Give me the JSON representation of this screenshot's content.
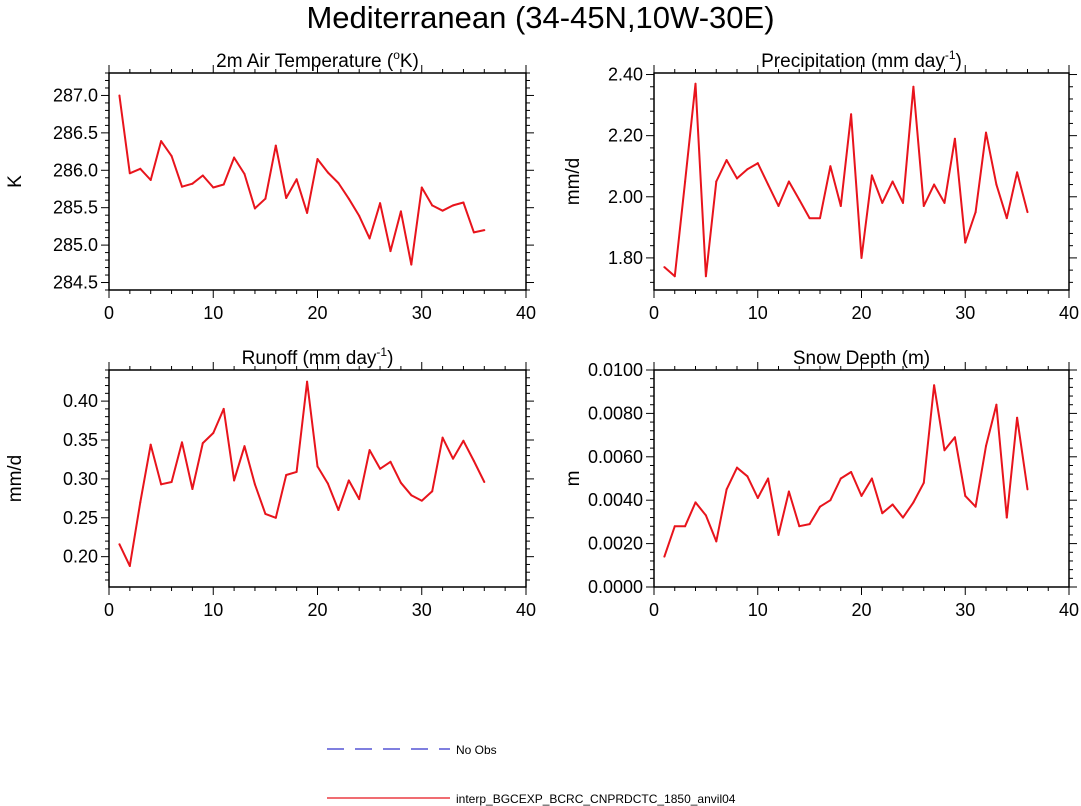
{
  "page": {
    "title": "Mediterranean (34-45N,10W-30E)"
  },
  "chart_data": [
    {
      "type": "line",
      "title": "2m Air Temperature (°K)",
      "title_main": "2m Air Temperature (",
      "title_sup": "o",
      "title_end": "K)",
      "xlabel": "",
      "ylabel": "K",
      "xlim": [
        0,
        40
      ],
      "ylim": [
        284.4,
        287.3
      ],
      "xticks": [
        0,
        10,
        20,
        30,
        40
      ],
      "xtick_labels": [
        "0",
        "10",
        "20",
        "30",
        "40"
      ],
      "yticks": [
        284.5,
        285.0,
        285.5,
        286.0,
        286.5,
        287.0
      ],
      "ytick_labels": [
        "284.5",
        "285.0",
        "285.5",
        "286.0",
        "286.5",
        "287.0"
      ],
      "series": [
        {
          "name": "interp_BGCEXP_BCRC_CNPRDCTC_1850_anvil04",
          "color": "#e8141c",
          "x": [
            1,
            2,
            3,
            4,
            5,
            6,
            7,
            8,
            9,
            10,
            11,
            12,
            13,
            14,
            15,
            16,
            17,
            18,
            19,
            20,
            21,
            22,
            23,
            24,
            25,
            26,
            27,
            28,
            29,
            30,
            31,
            32,
            33,
            34,
            35,
            36
          ],
          "values": [
            287.0,
            285.96,
            286.02,
            285.87,
            286.39,
            286.19,
            285.78,
            285.82,
            285.93,
            285.77,
            285.81,
            286.17,
            285.95,
            285.49,
            285.62,
            286.33,
            285.63,
            285.88,
            285.43,
            286.15,
            285.97,
            285.83,
            285.62,
            285.39,
            285.09,
            285.56,
            284.92,
            285.45,
            284.74,
            285.77,
            285.53,
            285.46,
            285.53,
            285.57,
            285.17,
            285.2
          ]
        }
      ]
    },
    {
      "type": "line",
      "title": "Precipitation (mm day-1)",
      "title_main": "Precipitation (mm day",
      "title_sup": "-1",
      "title_end": ")",
      "xlabel": "",
      "ylabel": "mm/d",
      "xlim": [
        0,
        40
      ],
      "ylim": [
        1.695,
        2.405
      ],
      "xticks": [
        0,
        10,
        20,
        30,
        40
      ],
      "xtick_labels": [
        "0",
        "10",
        "20",
        "30",
        "40"
      ],
      "yticks": [
        1.8,
        2.0,
        2.2,
        2.4
      ],
      "ytick_labels": [
        "1.80",
        "2.00",
        "2.20",
        "2.40"
      ],
      "series": [
        {
          "name": "interp_BGCEXP_BCRC_CNPRDCTC_1850_anvil04",
          "color": "#e8141c",
          "x": [
            1,
            2,
            3,
            4,
            5,
            6,
            7,
            8,
            9,
            10,
            11,
            12,
            13,
            14,
            15,
            16,
            17,
            18,
            19,
            20,
            21,
            22,
            23,
            24,
            25,
            26,
            27,
            28,
            29,
            30,
            31,
            32,
            33,
            34,
            35,
            36
          ],
          "values": [
            1.77,
            1.74,
            2.05,
            2.37,
            1.74,
            2.05,
            2.12,
            2.06,
            2.09,
            2.11,
            2.04,
            1.97,
            2.05,
            1.99,
            1.93,
            1.93,
            2.1,
            1.97,
            2.27,
            1.8,
            2.07,
            1.98,
            2.05,
            1.98,
            2.36,
            1.97,
            2.04,
            1.98,
            2.19,
            1.85,
            1.95,
            2.21,
            2.04,
            1.93,
            2.08,
            1.95
          ]
        }
      ]
    },
    {
      "type": "line",
      "title": "Runoff (mm day-1)",
      "title_main": "Runoff (mm day",
      "title_sup": "-1",
      "title_end": ")",
      "xlabel": "",
      "ylabel": "mm/d",
      "xlim": [
        0,
        40
      ],
      "ylim": [
        0.161,
        0.44
      ],
      "xticks": [
        0,
        10,
        20,
        30,
        40
      ],
      "xtick_labels": [
        "0",
        "10",
        "20",
        "30",
        "40"
      ],
      "yticks": [
        0.2,
        0.25,
        0.3,
        0.35,
        0.4
      ],
      "ytick_labels": [
        "0.20",
        "0.25",
        "0.30",
        "0.35",
        "0.40"
      ],
      "series": [
        {
          "name": "interp_BGCEXP_BCRC_CNPRDCTC_1850_anvil04",
          "color": "#e8141c",
          "x": [
            1,
            2,
            3,
            4,
            5,
            6,
            7,
            8,
            9,
            10,
            11,
            12,
            13,
            14,
            15,
            16,
            17,
            18,
            19,
            20,
            21,
            22,
            23,
            24,
            25,
            26,
            27,
            28,
            29,
            30,
            31,
            32,
            33,
            34,
            35,
            36
          ],
          "values": [
            0.216,
            0.188,
            0.27,
            0.344,
            0.293,
            0.296,
            0.347,
            0.287,
            0.346,
            0.359,
            0.39,
            0.298,
            0.342,
            0.293,
            0.255,
            0.25,
            0.305,
            0.309,
            0.425,
            0.316,
            0.294,
            0.26,
            0.298,
            0.274,
            0.337,
            0.313,
            0.322,
            0.295,
            0.279,
            0.272,
            0.284,
            0.353,
            0.326,
            0.349,
            0.323,
            0.296
          ]
        }
      ]
    },
    {
      "type": "line",
      "title": "Snow Depth (m)",
      "title_main": "Snow Depth (m)",
      "title_sup": "",
      "title_end": "",
      "xlabel": "",
      "ylabel": "m",
      "xlim": [
        0,
        40
      ],
      "ylim": [
        0.0,
        0.01
      ],
      "xticks": [
        0,
        10,
        20,
        30,
        40
      ],
      "xtick_labels": [
        "0",
        "10",
        "20",
        "30",
        "40"
      ],
      "yticks": [
        0.0,
        0.002,
        0.004,
        0.006,
        0.008,
        0.01
      ],
      "ytick_labels": [
        "0.0000",
        "0.0020",
        "0.0040",
        "0.0060",
        "0.0080",
        "0.0100"
      ],
      "series": [
        {
          "name": "interp_BGCEXP_BCRC_CNPRDCTC_1850_anvil04",
          "color": "#e8141c",
          "x": [
            1,
            2,
            3,
            4,
            5,
            6,
            7,
            8,
            9,
            10,
            11,
            12,
            13,
            14,
            15,
            16,
            17,
            18,
            19,
            20,
            21,
            22,
            23,
            24,
            25,
            26,
            27,
            28,
            29,
            30,
            31,
            32,
            33,
            34,
            35,
            36
          ],
          "values": [
            0.0014,
            0.0028,
            0.0028,
            0.0039,
            0.0033,
            0.0021,
            0.0045,
            0.0055,
            0.0051,
            0.0041,
            0.005,
            0.0024,
            0.0044,
            0.0028,
            0.0029,
            0.0037,
            0.004,
            0.005,
            0.0053,
            0.0042,
            0.005,
            0.0034,
            0.0038,
            0.0032,
            0.0039,
            0.0048,
            0.0093,
            0.0063,
            0.0069,
            0.0042,
            0.0037,
            0.0065,
            0.0084,
            0.0032,
            0.0078,
            0.0045
          ]
        }
      ]
    }
  ],
  "legend": {
    "items": [
      {
        "label": "No Obs",
        "color": "#3333cc",
        "style": "dashed"
      },
      {
        "label": "interp_BGCEXP_BCRC_CNPRDCTC_1850_anvil04",
        "color": "#e8141c",
        "style": "solid"
      }
    ]
  }
}
